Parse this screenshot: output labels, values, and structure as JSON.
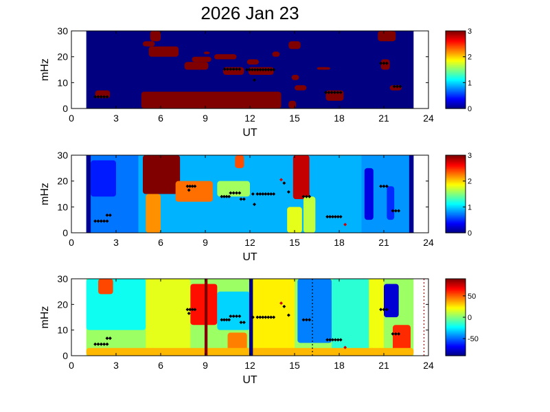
{
  "title": "2026 Jan 23",
  "chart_data": [
    {
      "type": "heatmap",
      "xlabel": "UT",
      "ylabel": "mHz",
      "xlim": [
        0,
        24
      ],
      "ylim": [
        0,
        30
      ],
      "xticks": [
        "0",
        "3",
        "6",
        "9",
        "12",
        "15",
        "18",
        "21",
        "24"
      ],
      "yticks": [
        "0",
        "10",
        "20",
        "30"
      ],
      "colorbar": {
        "min": 0,
        "max": 3,
        "ticks": [
          "0",
          "1",
          "2",
          "3"
        ],
        "colormap": "jet"
      },
      "data_extent_x": [
        1,
        23
      ],
      "background_value": 0,
      "patches": [
        {
          "x": [
            4.7,
            14.1
          ],
          "y": [
            0,
            6.5
          ],
          "value": 3
        },
        {
          "x": [
            5.2,
            7.2
          ],
          "y": [
            20,
            24
          ],
          "value": 3
        },
        {
          "x": [
            5.3,
            6.0
          ],
          "y": [
            26,
            30
          ],
          "value": 3
        },
        {
          "x": [
            4.8,
            5.6
          ],
          "y": [
            24,
            26
          ],
          "value": 3
        },
        {
          "x": [
            7.6,
            9.2
          ],
          "y": [
            15,
            18
          ],
          "value": 3
        },
        {
          "x": [
            8.1,
            9.4
          ],
          "y": [
            18,
            20
          ],
          "value": 3
        },
        {
          "x": [
            9.6,
            11.1
          ],
          "y": [
            19,
            21
          ],
          "value": 3
        },
        {
          "x": [
            10.2,
            11.6
          ],
          "y": [
            13,
            16
          ],
          "value": 3
        },
        {
          "x": [
            11.4,
            12.6
          ],
          "y": [
            3,
            6
          ],
          "value": 3
        },
        {
          "x": [
            11.9,
            13.6
          ],
          "y": [
            13,
            16
          ],
          "value": 3
        },
        {
          "x": [
            11.8,
            12.6
          ],
          "y": [
            17,
            19
          ],
          "value": 3
        },
        {
          "x": [
            1.6,
            2.6
          ],
          "y": [
            4,
            7
          ],
          "value": 3
        },
        {
          "x": [
            14.6,
            15.4
          ],
          "y": [
            23,
            26
          ],
          "value": 3
        },
        {
          "x": [
            15.0,
            15.8
          ],
          "y": [
            7,
            9
          ],
          "value": 3
        },
        {
          "x": [
            14.6,
            15.1
          ],
          "y": [
            0,
            3
          ],
          "value": 3
        },
        {
          "x": [
            16.5,
            17.4
          ],
          "y": [
            15,
            16
          ],
          "value": 3
        },
        {
          "x": [
            17.1,
            18.3
          ],
          "y": [
            3,
            7
          ],
          "value": 3
        },
        {
          "x": [
            20.6,
            21.8
          ],
          "y": [
            26,
            30
          ],
          "value": 3
        },
        {
          "x": [
            20.8,
            21.4
          ],
          "y": [
            15,
            19
          ],
          "value": 3
        },
        {
          "x": [
            21.4,
            22.2
          ],
          "y": [
            7,
            9
          ],
          "value": 3
        },
        {
          "x": [
            13.5,
            14.0
          ],
          "y": [
            20,
            22
          ],
          "value": 3
        },
        {
          "x": [
            8.9,
            9.3
          ],
          "y": [
            21,
            22
          ],
          "value": 3
        },
        {
          "x": [
            14.8,
            15.3
          ],
          "y": [
            11,
            13
          ],
          "value": 3
        },
        {
          "x": [
            10.4,
            11.4
          ],
          "y": [
            0,
            3
          ],
          "value": 3
        }
      ],
      "markers": [
        {
          "x": [
            1.6,
            2.4
          ],
          "y": 4.5
        },
        {
          "x": [
            10.3,
            11.3
          ],
          "y": 15.2
        },
        {
          "x": [
            11.8,
            13.6
          ],
          "y": 15.0
        },
        {
          "x": [
            17.1,
            18.1
          ],
          "y": 6.2
        },
        {
          "x": [
            21.7,
            22.1
          ],
          "y": 8.5
        },
        {
          "x": [
            20.8,
            21.2
          ],
          "y": 17.5
        },
        {
          "x": [
            12.3,
            12.3
          ],
          "y": 11.0
        }
      ]
    },
    {
      "type": "heatmap",
      "xlabel": "UT",
      "ylabel": "mHz",
      "xlim": [
        0,
        24
      ],
      "ylim": [
        0,
        30
      ],
      "xticks": [
        "0",
        "3",
        "6",
        "9",
        "12",
        "15",
        "18",
        "21",
        "24"
      ],
      "yticks": [
        "0",
        "10",
        "20",
        "30"
      ],
      "colorbar": {
        "min": 0,
        "max": 3,
        "ticks": [
          "0",
          "1",
          "2",
          "3"
        ],
        "colormap": "jet"
      },
      "data_extent_x": [
        1,
        23
      ],
      "background_value": 0.9,
      "bands": [
        {
          "x": [
            1.0,
            1.3
          ],
          "value": 0.05
        },
        {
          "x": [
            22.7,
            23.0
          ],
          "value": 0.05
        },
        {
          "x": [
            1.3,
            4.5
          ],
          "value": 0.7
        },
        {
          "x": [
            19.5,
            22.7
          ],
          "value": 0.8
        }
      ],
      "patches": [
        {
          "x": [
            4.8,
            7.3
          ],
          "y": [
            15,
            30
          ],
          "value": 3
        },
        {
          "x": [
            5.0,
            6.0
          ],
          "y": [
            0,
            15
          ],
          "value": 2.2
        },
        {
          "x": [
            7.0,
            9.5
          ],
          "y": [
            12,
            20
          ],
          "value": 2.3
        },
        {
          "x": [
            11.0,
            11.6
          ],
          "y": [
            25,
            30
          ],
          "value": 2.4
        },
        {
          "x": [
            14.9,
            16.0
          ],
          "y": [
            13,
            30
          ],
          "value": 2.8
        },
        {
          "x": [
            14.5,
            15.5
          ],
          "y": [
            0,
            10
          ],
          "value": 1.8
        },
        {
          "x": [
            15.6,
            16.4
          ],
          "y": [
            0,
            14
          ],
          "value": 1.7
        },
        {
          "x": [
            19.7,
            20.3
          ],
          "y": [
            5,
            25
          ],
          "value": 0.3
        },
        {
          "x": [
            21.2,
            21.7
          ],
          "y": [
            5,
            18
          ],
          "value": 0.5
        },
        {
          "x": [
            9.8,
            12.0
          ],
          "y": [
            14,
            20
          ],
          "value": 1.6
        },
        {
          "x": [
            1.3,
            3.0
          ],
          "y": [
            14,
            28
          ],
          "value": 0.45
        }
      ],
      "markers": [
        {
          "x": [
            1.6,
            2.4
          ],
          "y": 4.5
        },
        {
          "x": [
            2.4,
            2.6
          ],
          "y": 6.8
        },
        {
          "x": [
            7.8,
            8.3
          ],
          "y": 18.0
        },
        {
          "x": [
            7.9,
            7.9
          ],
          "y": 16.5
        },
        {
          "x": [
            10.1,
            10.6
          ],
          "y": 14.0
        },
        {
          "x": [
            10.7,
            11.3
          ],
          "y": 15.4
        },
        {
          "x": [
            11.4,
            11.6
          ],
          "y": 13.0
        },
        {
          "x": [
            12.2,
            12.2
          ],
          "y": 15.0
        },
        {
          "x": [
            12.3,
            12.3
          ],
          "y": 11.0
        },
        {
          "x": [
            12.5,
            13.6
          ],
          "y": 15.0
        },
        {
          "x": [
            14.1,
            14.1
          ],
          "y": 20.5,
          "color": "#d40000"
        },
        {
          "x": [
            14.3,
            14.3
          ],
          "y": 19.2
        },
        {
          "x": [
            14.6,
            14.6
          ],
          "y": 15.8
        },
        {
          "x": [
            15.6,
            16.0
          ],
          "y": 14.0
        },
        {
          "x": [
            17.2,
            18.1
          ],
          "y": 6.2
        },
        {
          "x": [
            18.4,
            18.4
          ],
          "y": 3.2,
          "color": "#d40000"
        },
        {
          "x": [
            20.8,
            21.2
          ],
          "y": 18.0
        },
        {
          "x": [
            21.6,
            22.0
          ],
          "y": 8.5
        }
      ]
    },
    {
      "type": "heatmap",
      "xlabel": "UT",
      "ylabel": "mHz",
      "xlim": [
        0,
        24
      ],
      "ylim": [
        0,
        30
      ],
      "xticks": [
        "0",
        "3",
        "6",
        "9",
        "12",
        "15",
        "18",
        "21",
        "24"
      ],
      "yticks": [
        "0",
        "10",
        "20",
        "30"
      ],
      "colorbar": {
        "min": -90,
        "max": 90,
        "ticks": [
          "50",
          "0",
          "-50"
        ],
        "tick_values": [
          50,
          0,
          -50
        ],
        "colormap": "jet"
      },
      "data_extent_x": [
        1,
        23
      ],
      "background_value": 5,
      "bands": [
        {
          "x": [
            8.95,
            9.15
          ],
          "value": 90
        },
        {
          "x": [
            11.95,
            12.2
          ],
          "value": -90
        }
      ],
      "patches": [
        {
          "x": [
            1.0,
            5.0
          ],
          "y": [
            10,
            30
          ],
          "value": -20
        },
        {
          "x": [
            1.8,
            2.8
          ],
          "y": [
            24,
            30
          ],
          "value": 55
        },
        {
          "x": [
            5.0,
            8.0
          ],
          "y": [
            0,
            30
          ],
          "value": 18
        },
        {
          "x": [
            8.0,
            9.8
          ],
          "y": [
            12,
            28
          ],
          "value": 65
        },
        {
          "x": [
            9.8,
            12.0
          ],
          "y": [
            10,
            25
          ],
          "value": -30
        },
        {
          "x": [
            10.5,
            11.8
          ],
          "y": [
            0,
            9
          ],
          "value": 45
        },
        {
          "x": [
            12.2,
            15.0
          ],
          "y": [
            0,
            30
          ],
          "value": 25
        },
        {
          "x": [
            15.2,
            17.5
          ],
          "y": [
            5,
            30
          ],
          "value": -45
        },
        {
          "x": [
            17.5,
            20.0
          ],
          "y": [
            0,
            30
          ],
          "value": -15
        },
        {
          "x": [
            20.0,
            21.0
          ],
          "y": [
            0,
            30
          ],
          "value": 20
        },
        {
          "x": [
            21.0,
            22.0
          ],
          "y": [
            15,
            28
          ],
          "value": -75
        },
        {
          "x": [
            21.6,
            22.8
          ],
          "y": [
            2,
            12
          ],
          "value": 60
        },
        {
          "x": [
            1.0,
            23.0
          ],
          "y": [
            0,
            3
          ],
          "value": 35
        }
      ],
      "vertical_dotted_lines": [
        {
          "x": 16.2,
          "color": "#000000"
        },
        {
          "x": 23.7,
          "color": "#b40000"
        }
      ],
      "markers": [
        {
          "x": [
            1.6,
            2.4
          ],
          "y": 4.5
        },
        {
          "x": [
            2.4,
            2.6
          ],
          "y": 6.8
        },
        {
          "x": [
            7.8,
            8.3
          ],
          "y": 18.0
        },
        {
          "x": [
            7.9,
            7.9
          ],
          "y": 16.5
        },
        {
          "x": [
            10.1,
            10.6
          ],
          "y": 14.0
        },
        {
          "x": [
            10.7,
            11.3
          ],
          "y": 15.4
        },
        {
          "x": [
            11.4,
            11.6
          ],
          "y": 13.0
        },
        {
          "x": [
            12.2,
            12.2
          ],
          "y": 15.0
        },
        {
          "x": [
            12.5,
            13.6
          ],
          "y": 15.0
        },
        {
          "x": [
            14.1,
            14.1
          ],
          "y": 20.5,
          "color": "#d40000"
        },
        {
          "x": [
            14.3,
            14.3
          ],
          "y": 19.2
        },
        {
          "x": [
            14.6,
            14.6
          ],
          "y": 15.8
        },
        {
          "x": [
            15.6,
            16.0
          ],
          "y": 14.0
        },
        {
          "x": [
            17.2,
            18.1
          ],
          "y": 6.2
        },
        {
          "x": [
            18.4,
            18.4
          ],
          "y": 3.2,
          "color": "#d40000"
        },
        {
          "x": [
            20.8,
            21.2
          ],
          "y": 18.0
        },
        {
          "x": [
            21.6,
            22.0
          ],
          "y": 8.5
        }
      ]
    }
  ]
}
